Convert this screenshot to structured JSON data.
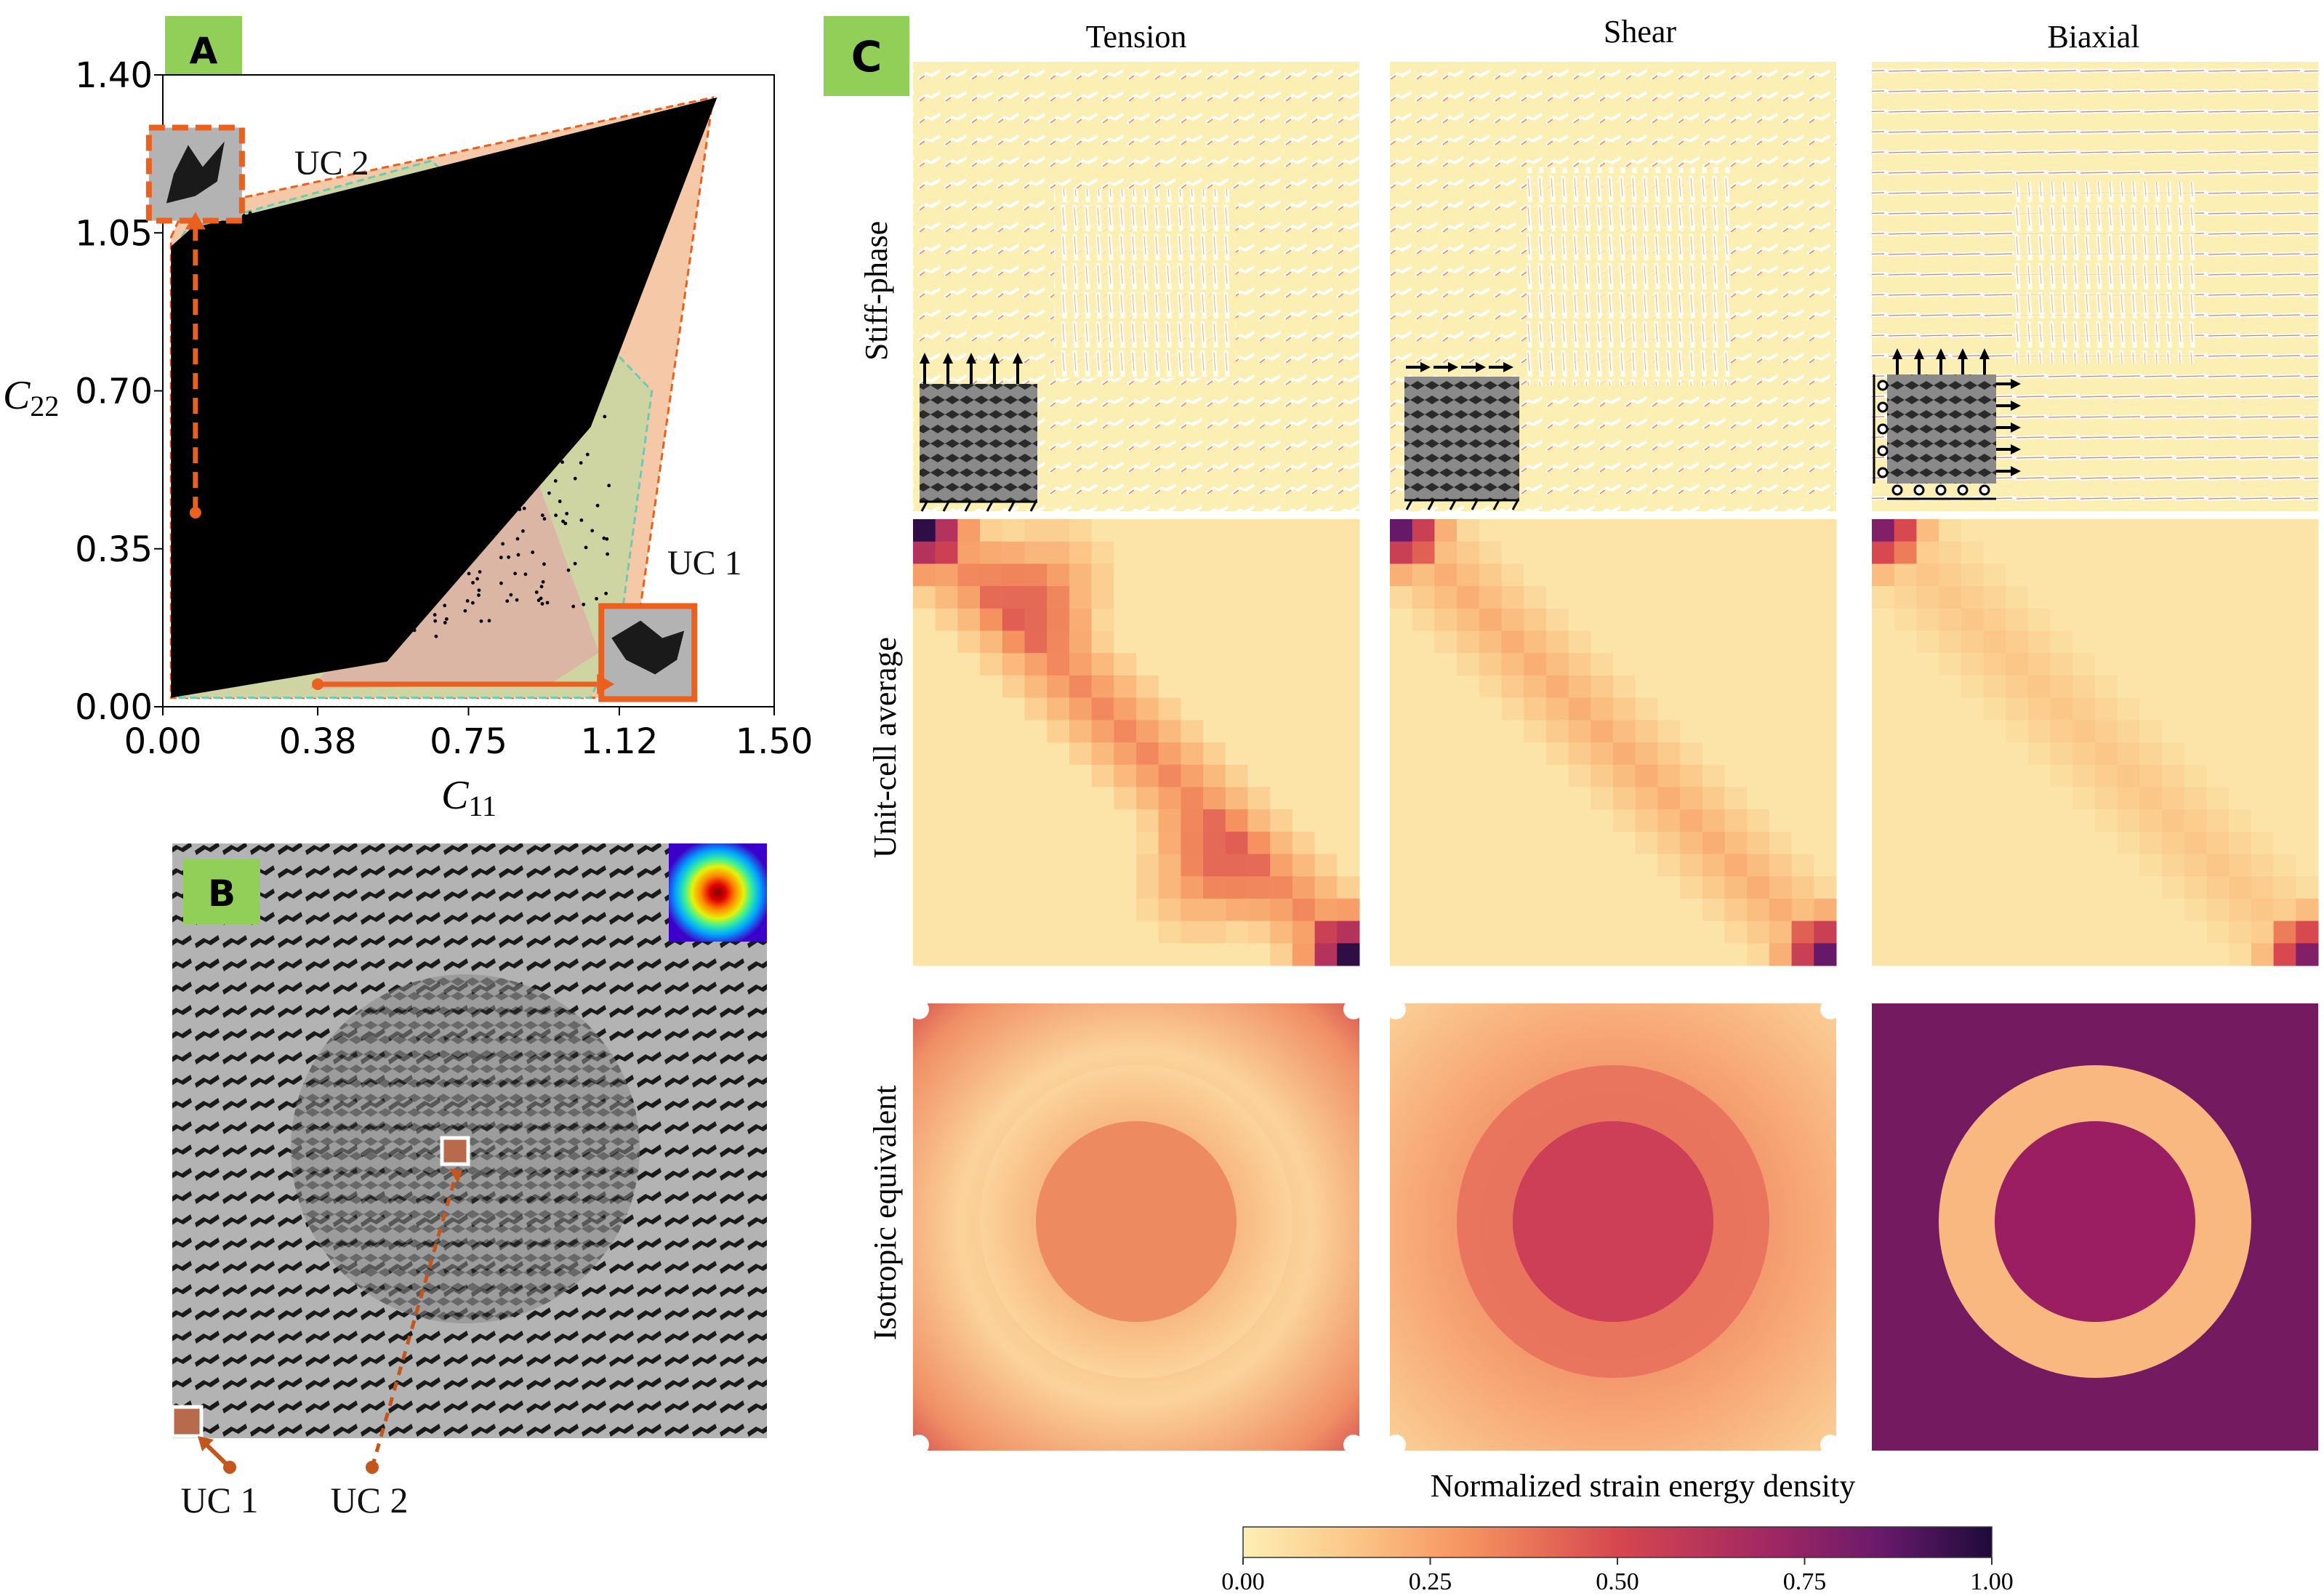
{
  "panel_labels": {
    "a": "A",
    "b": "B",
    "c": "C"
  },
  "colors": {
    "badge": "#92cf59",
    "accent": "#e9601f",
    "scatter": "#000000",
    "gray": "#b3b3b3"
  },
  "panel_a": {
    "uc1_label": "UC 1",
    "uc2_label": "UC 2"
  },
  "panel_b": {
    "uc1_label": "UC 1",
    "uc2_label": "UC 2"
  },
  "panel_c": {
    "columns": [
      "Tension",
      "Shear",
      "Biaxial"
    ],
    "rows": [
      "Stiff-phase",
      "Unit-cell average",
      "Isotropic equivalent"
    ],
    "colorbar": {
      "title": "Normalized strain energy density",
      "ticks": [
        "0.00",
        "0.25",
        "0.50",
        "0.75",
        "1.00"
      ]
    }
  },
  "chart_data": {
    "type": "scatter",
    "title": "",
    "xlabel": "C11",
    "ylabel": "C22",
    "xlim": [
      0.0,
      1.5
    ],
    "ylim": [
      0.0,
      1.4
    ],
    "x_ticks": [
      "0.00",
      "0.38",
      "0.75",
      "1.12",
      "1.50"
    ],
    "y_ticks": [
      "0.00",
      "0.35",
      "0.70",
      "1.05",
      "1.40"
    ],
    "hull_outer": [
      [
        0.02,
        1.04
      ],
      [
        0.05,
        1.1
      ],
      [
        1.35,
        1.35
      ],
      [
        1.14,
        0.02
      ],
      [
        0.02,
        0.02
      ]
    ],
    "hull_inner": [
      [
        0.03,
        1.02
      ],
      [
        0.06,
        1.06
      ],
      [
        0.66,
        1.21
      ],
      [
        1.2,
        0.7
      ],
      [
        1.12,
        0.16
      ],
      [
        1.05,
        0.02
      ],
      [
        0.03,
        0.02
      ]
    ],
    "wedge_low": [
      [
        0.36,
        0.04
      ],
      [
        0.95,
        0.05
      ],
      [
        1.07,
        0.12
      ],
      [
        0.9,
        0.55
      ]
    ],
    "wedge_up": [
      [
        0.06,
        0.5
      ],
      [
        0.06,
        1.05
      ],
      [
        0.55,
        1.15
      ],
      [
        0.7,
        0.95
      ]
    ],
    "uc1": {
      "c11": 1.19,
      "c22": 0.12
    },
    "uc2": {
      "c11": 0.08,
      "c22": 1.18
    },
    "uc1_arrow_start": {
      "c11": 0.38,
      "c22": 0.05
    },
    "uc2_arrow_start": {
      "c11": 0.08,
      "c22": 0.43
    }
  }
}
